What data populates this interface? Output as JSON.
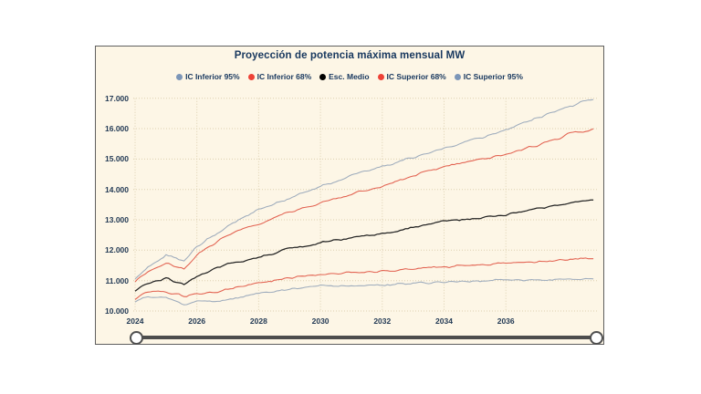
{
  "chart_data": {
    "type": "line",
    "title": "Proyección de potencia máxima mensual MW",
    "xlabel": "",
    "ylabel": "",
    "x_range": [
      2024,
      2038.9
    ],
    "y_range": [
      10000,
      17000
    ],
    "grid": "dotted",
    "grid_color": "#ddd0b0",
    "legend_position": "top",
    "background": "#fdf6e6",
    "text_color": "#17375e",
    "noise_amplitude": 55,
    "x_ticks": [
      {
        "year": 2024,
        "label": "2024"
      },
      {
        "year": 2026,
        "label": "2026"
      },
      {
        "year": 2028,
        "label": "2028"
      },
      {
        "year": 2030,
        "label": "2030"
      },
      {
        "year": 2032,
        "label": "2032"
      },
      {
        "year": 2034,
        "label": "2034"
      },
      {
        "year": 2036,
        "label": "2036"
      }
    ],
    "y_ticks": [
      {
        "value": 17000,
        "label": "17.000"
      },
      {
        "value": 16000,
        "label": "16.000"
      },
      {
        "value": 15000,
        "label": "15.000"
      },
      {
        "value": 14000,
        "label": "14.000"
      },
      {
        "value": 13000,
        "label": "13.000"
      },
      {
        "value": 12000,
        "label": "12.000"
      },
      {
        "value": 11000,
        "label": "11.000"
      },
      {
        "value": 10000,
        "label": "10.000"
      }
    ],
    "series": [
      {
        "name": "IC Inferior 95%",
        "color": "#7c96b8",
        "line_color": "#9dabbc",
        "points": [
          [
            2024.0,
            10300
          ],
          [
            2024.4,
            10480
          ],
          [
            2025.0,
            10420
          ],
          [
            2025.6,
            10220
          ],
          [
            2026.0,
            10370
          ],
          [
            2026.5,
            10300
          ],
          [
            2027.0,
            10370
          ],
          [
            2028.0,
            10570
          ],
          [
            2029.0,
            10700
          ],
          [
            2030.0,
            10820
          ],
          [
            2031.0,
            10830
          ],
          [
            2032.0,
            10850
          ],
          [
            2033.0,
            10900
          ],
          [
            2034.0,
            10950
          ],
          [
            2035.0,
            11000
          ],
          [
            2036.0,
            11050
          ],
          [
            2037.0,
            11020
          ],
          [
            2038.0,
            11050
          ],
          [
            2038.9,
            11060
          ]
        ]
      },
      {
        "name": "IC Inferior 68%",
        "color": "#ee4237",
        "line_color": "#e2604f",
        "points": [
          [
            2024.0,
            10400
          ],
          [
            2024.4,
            10620
          ],
          [
            2025.0,
            10650
          ],
          [
            2025.6,
            10480
          ],
          [
            2026.0,
            10580
          ],
          [
            2026.5,
            10600
          ],
          [
            2027.0,
            10720
          ],
          [
            2028.0,
            10920
          ],
          [
            2029.0,
            11100
          ],
          [
            2030.0,
            11220
          ],
          [
            2031.0,
            11250
          ],
          [
            2032.0,
            11300
          ],
          [
            2033.0,
            11380
          ],
          [
            2034.0,
            11450
          ],
          [
            2035.0,
            11500
          ],
          [
            2036.0,
            11570
          ],
          [
            2037.0,
            11620
          ],
          [
            2038.0,
            11700
          ],
          [
            2038.9,
            11750
          ]
        ]
      },
      {
        "name": "Esc. Medio",
        "color": "#000000",
        "line_color": "#222222",
        "points": [
          [
            2024.0,
            10650
          ],
          [
            2024.4,
            10900
          ],
          [
            2025.0,
            11080
          ],
          [
            2025.6,
            10880
          ],
          [
            2026.0,
            11150
          ],
          [
            2027.0,
            11550
          ],
          [
            2028.0,
            11750
          ],
          [
            2029.0,
            12050
          ],
          [
            2030.0,
            12250
          ],
          [
            2031.0,
            12400
          ],
          [
            2032.0,
            12550
          ],
          [
            2033.0,
            12750
          ],
          [
            2034.0,
            12950
          ],
          [
            2035.0,
            13050
          ],
          [
            2036.0,
            13150
          ],
          [
            2037.0,
            13350
          ],
          [
            2038.0,
            13550
          ],
          [
            2038.9,
            13680
          ]
        ]
      },
      {
        "name": "IC Superior 68%",
        "color": "#ee4237",
        "line_color": "#e2604f",
        "points": [
          [
            2024.0,
            10950
          ],
          [
            2024.4,
            11300
          ],
          [
            2025.0,
            11550
          ],
          [
            2025.6,
            11400
          ],
          [
            2026.0,
            11850
          ],
          [
            2027.0,
            12500
          ],
          [
            2028.0,
            12850
          ],
          [
            2029.0,
            13250
          ],
          [
            2030.0,
            13550
          ],
          [
            2031.0,
            13850
          ],
          [
            2032.0,
            14100
          ],
          [
            2033.0,
            14450
          ],
          [
            2034.0,
            14750
          ],
          [
            2035.0,
            14950
          ],
          [
            2036.0,
            15150
          ],
          [
            2037.0,
            15450
          ],
          [
            2038.0,
            15800
          ],
          [
            2038.9,
            16000
          ]
        ]
      },
      {
        "name": "IC Superior 95%",
        "color": "#7c96b8",
        "line_color": "#9dabbc",
        "points": [
          [
            2024.0,
            11050
          ],
          [
            2024.4,
            11450
          ],
          [
            2025.0,
            11850
          ],
          [
            2025.6,
            11650
          ],
          [
            2026.0,
            12100
          ],
          [
            2027.0,
            12800
          ],
          [
            2028.0,
            13350
          ],
          [
            2029.0,
            13700
          ],
          [
            2030.0,
            14100
          ],
          [
            2031.0,
            14450
          ],
          [
            2032.0,
            14750
          ],
          [
            2033.0,
            15050
          ],
          [
            2034.0,
            15350
          ],
          [
            2035.0,
            15650
          ],
          [
            2036.0,
            15950
          ],
          [
            2037.0,
            16350
          ],
          [
            2038.0,
            16700
          ],
          [
            2038.9,
            17000
          ]
        ]
      }
    ]
  },
  "slider": {
    "track_color": "#4d4d4d",
    "handle_fill": "#ffffff",
    "handle_border": "#4f4f4f"
  }
}
